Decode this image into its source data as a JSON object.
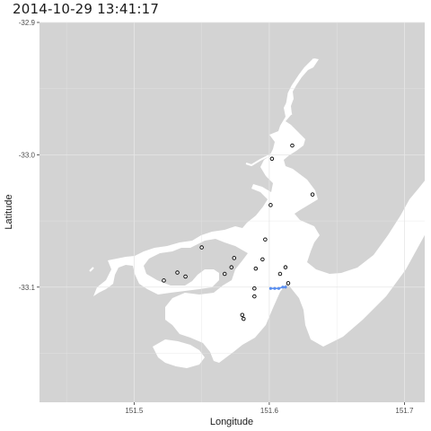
{
  "title": "2014-10-29 13:41:17",
  "chart_data": {
    "type": "scatter",
    "xlabel": "Longitude",
    "ylabel": "Latitude",
    "xlim": [
      151.43,
      151.715
    ],
    "ylim": [
      -33.187,
      -32.9
    ],
    "x_ticks": [
      151.5,
      151.6,
      151.7
    ],
    "x_tick_labels": [
      "151.5",
      "151.6",
      "151.7"
    ],
    "y_ticks": [
      -32.9,
      -33.0,
      -33.1
    ],
    "y_tick_labels": [
      "-32.9",
      "-33.0",
      "-33.1"
    ],
    "grid": true,
    "land_color": "#d3d3d3",
    "water_color": "#ffffff",
    "stations": {
      "name": "stations",
      "color": "#000000",
      "x": [
        151.617,
        151.602,
        151.632,
        151.601,
        151.597,
        151.55,
        151.574,
        151.572,
        151.567,
        151.595,
        151.59,
        151.612,
        151.608,
        151.532,
        151.538,
        151.522,
        151.614,
        151.589,
        151.589,
        151.58,
        151.581
      ],
      "y": [
        -32.993,
        -33.003,
        -33.03,
        -33.038,
        -33.064,
        -33.07,
        -33.078,
        -33.085,
        -33.09,
        -33.079,
        -33.086,
        -33.085,
        -33.09,
        -33.089,
        -33.092,
        -33.095,
        -33.097,
        -33.101,
        -33.107,
        -33.121,
        -33.124
      ]
    },
    "vessel_track": {
      "name": "track",
      "color": "#5b8ff0",
      "x": [
        151.601,
        151.604,
        151.607,
        151.61,
        151.612
      ],
      "y": [
        -33.101,
        -33.101,
        -33.101,
        -33.1,
        -33.1
      ]
    }
  }
}
